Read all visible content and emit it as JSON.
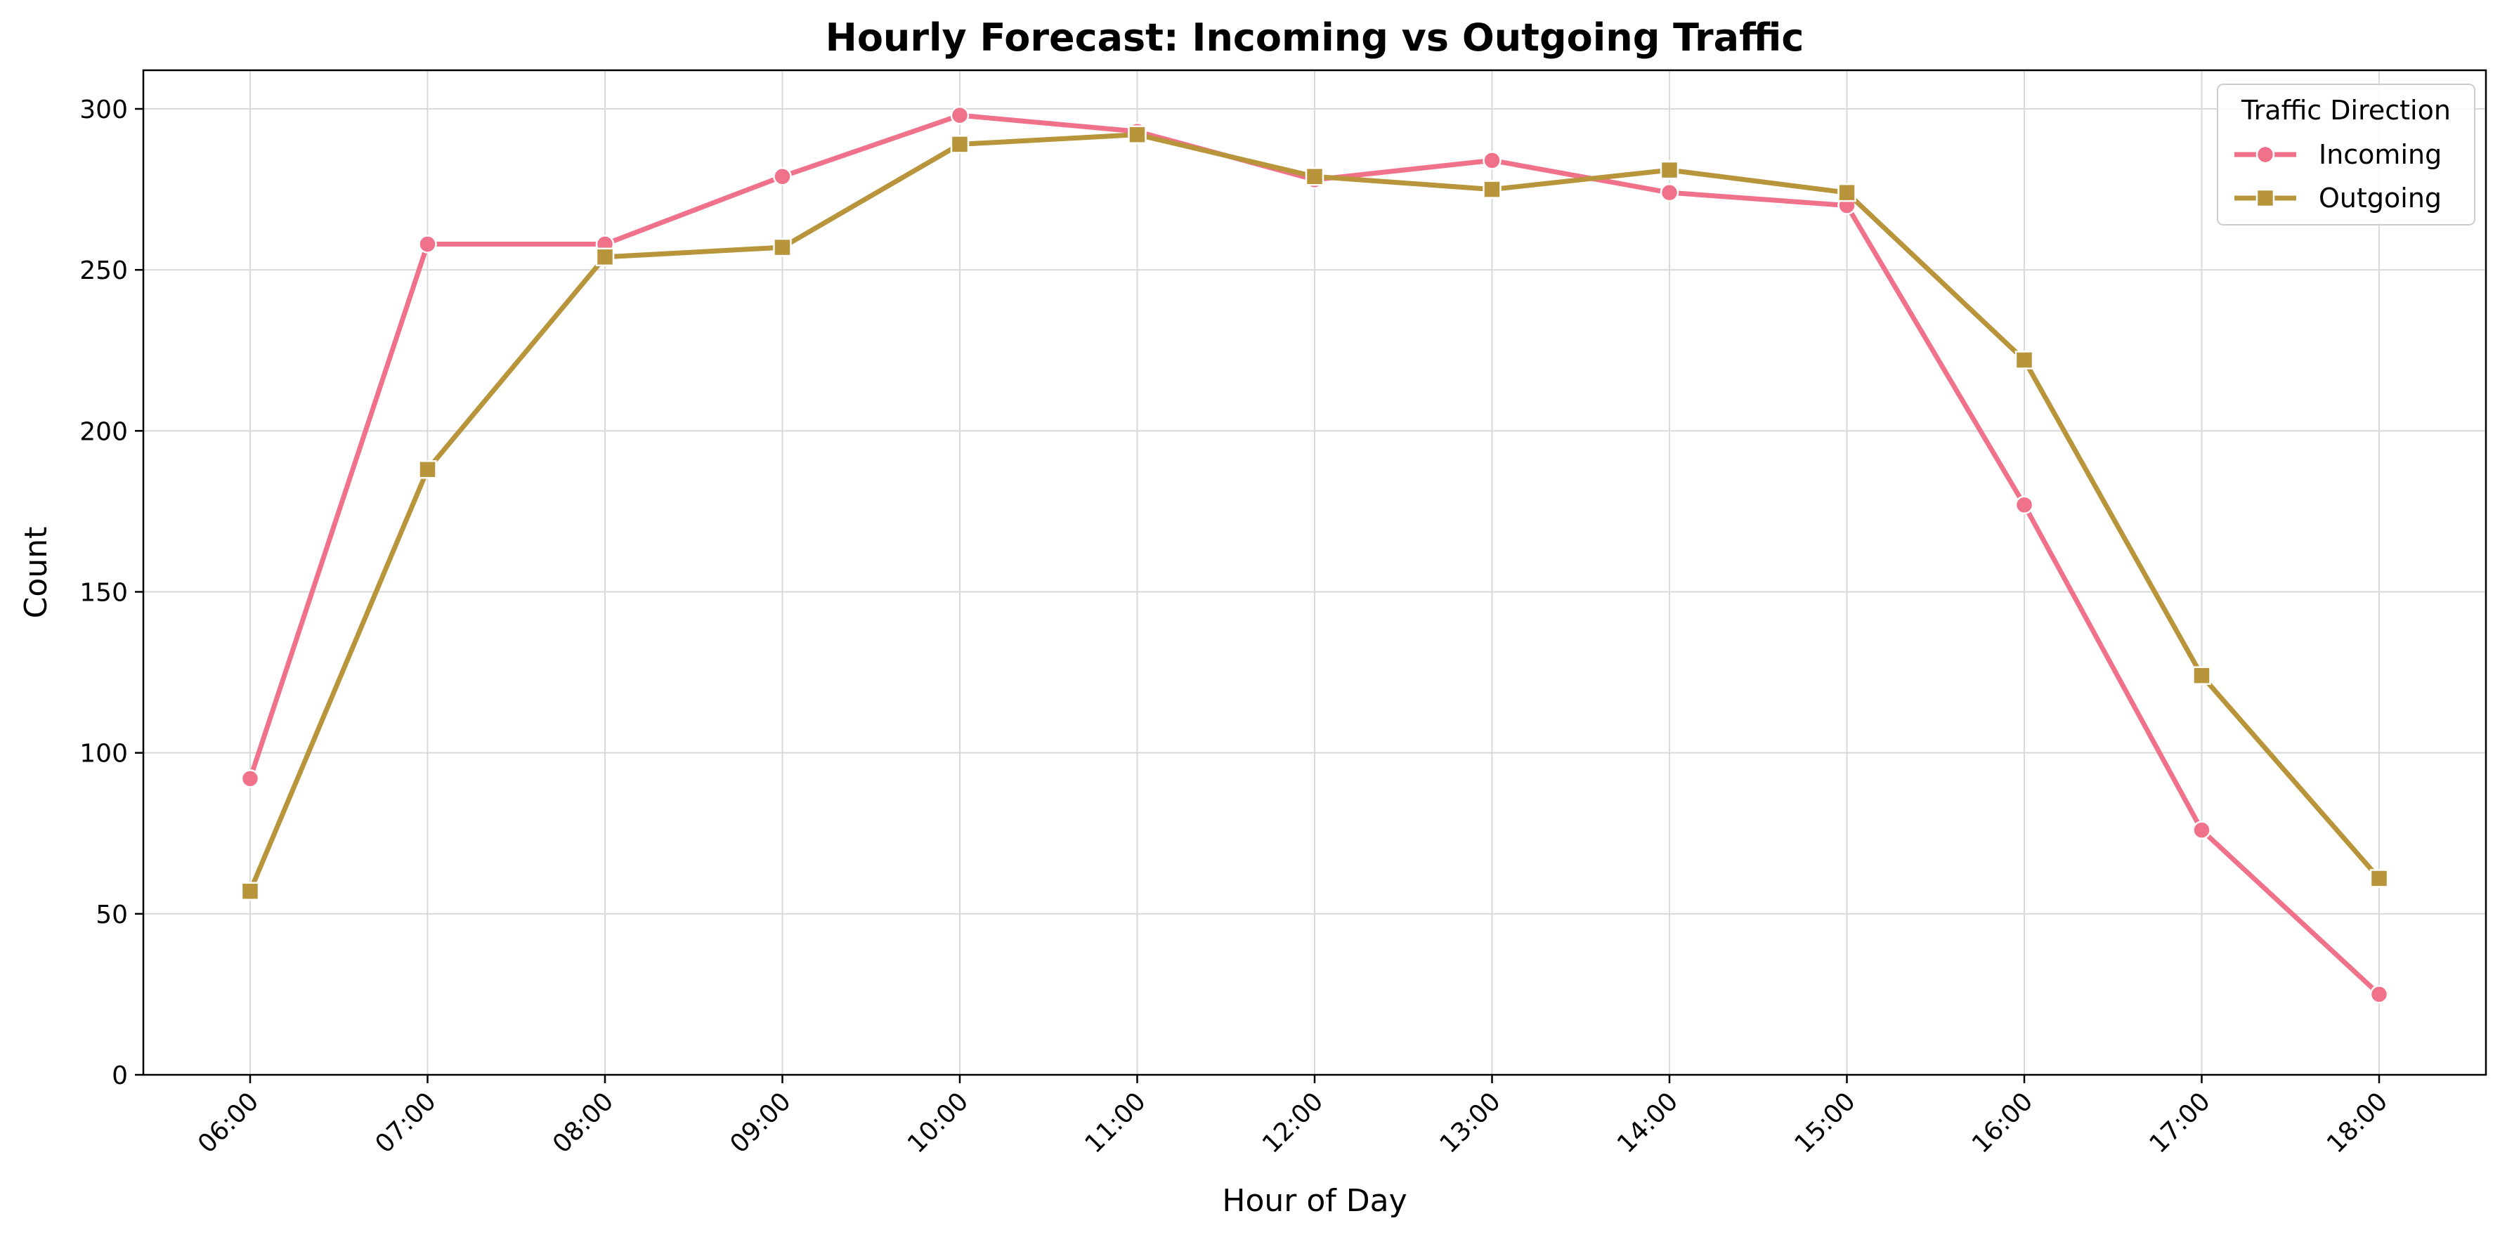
{
  "chart_data": {
    "type": "line",
    "title": "Hourly Forecast: Incoming vs Outgoing Traffic",
    "xlabel": "Hour of Day",
    "ylabel": "Count",
    "categories": [
      "06:00",
      "07:00",
      "08:00",
      "09:00",
      "10:00",
      "11:00",
      "12:00",
      "13:00",
      "14:00",
      "15:00",
      "16:00",
      "17:00",
      "18:00"
    ],
    "ylim": [
      0,
      312
    ],
    "yticks": [
      0,
      50,
      100,
      150,
      200,
      250,
      300
    ],
    "grid": true,
    "legend": {
      "title": "Traffic Direction",
      "placement": "top-right"
    },
    "series": [
      {
        "name": "Incoming",
        "color": "#f0718a",
        "marker": "circle",
        "values": [
          92,
          258,
          258,
          279,
          298,
          293,
          278,
          284,
          274,
          270,
          177,
          76,
          25
        ]
      },
      {
        "name": "Outgoing",
        "color": "#b8943a",
        "marker": "square",
        "values": [
          57,
          188,
          254,
          257,
          289,
          292,
          279,
          275,
          281,
          274,
          222,
          124,
          61
        ]
      }
    ]
  }
}
